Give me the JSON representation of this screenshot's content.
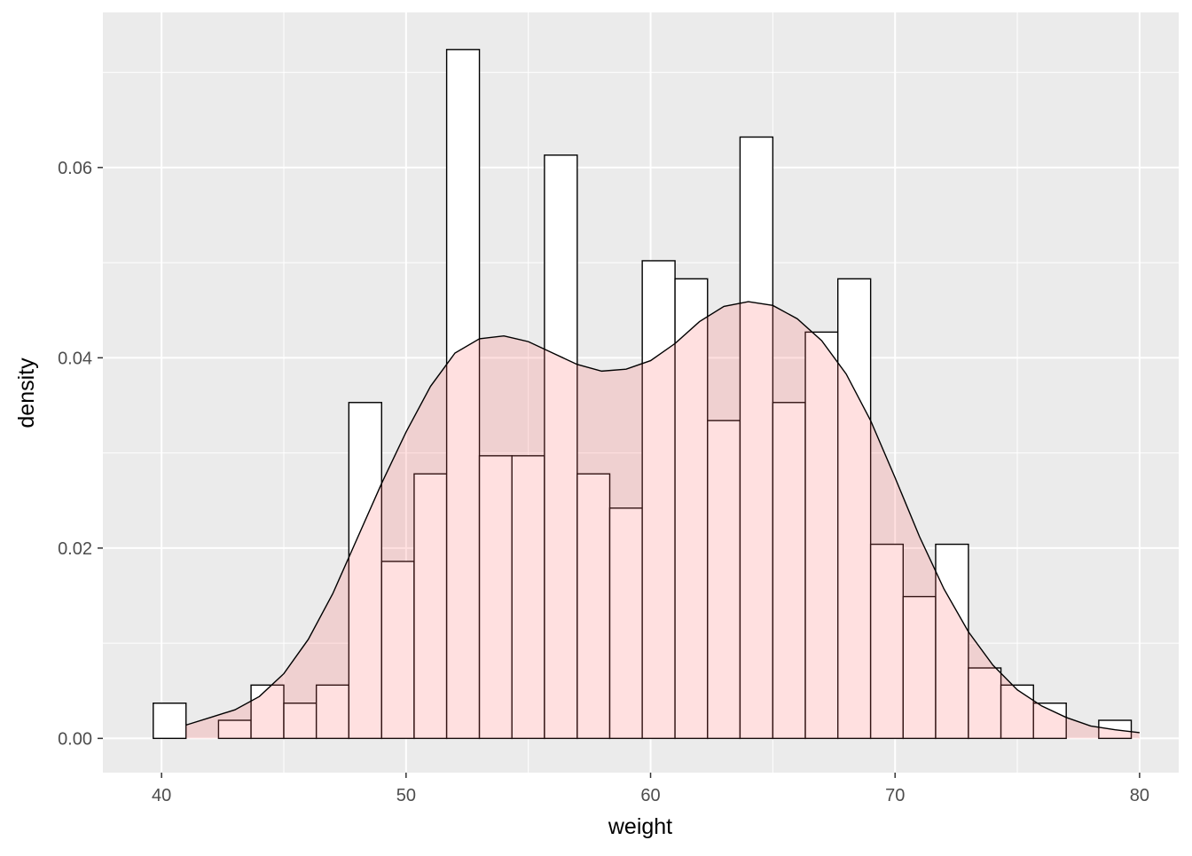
{
  "chart_data": {
    "type": "bar",
    "subtype": "histogram-with-density",
    "xlabel": "weight",
    "ylabel": "density",
    "xlim": [
      37.6,
      81.6
    ],
    "ylim": [
      -0.0036,
      0.0763
    ],
    "x_ticks": [
      40,
      50,
      60,
      70,
      80
    ],
    "y_ticks": [
      0.0,
      0.02,
      0.04,
      0.06
    ],
    "x_tick_labels": [
      "40",
      "50",
      "60",
      "70",
      "80"
    ],
    "y_tick_labels": [
      "0.00",
      "0.02",
      "0.04",
      "0.06"
    ],
    "grid": true,
    "background": "#ebebeb",
    "bins": [
      {
        "x0": 39.66,
        "x1": 41.0,
        "density": 0.0037
      },
      {
        "x0": 41.0,
        "x1": 42.33,
        "density": 0.0
      },
      {
        "x0": 42.33,
        "x1": 43.66,
        "density": 0.0019
      },
      {
        "x0": 43.66,
        "x1": 45.0,
        "density": 0.0056
      },
      {
        "x0": 45.0,
        "x1": 46.33,
        "density": 0.0037
      },
      {
        "x0": 46.33,
        "x1": 47.66,
        "density": 0.0056
      },
      {
        "x0": 47.66,
        "x1": 49.0,
        "density": 0.0353
      },
      {
        "x0": 49.0,
        "x1": 50.33,
        "density": 0.0186
      },
      {
        "x0": 50.33,
        "x1": 51.66,
        "density": 0.0278
      },
      {
        "x0": 51.66,
        "x1": 53.0,
        "density": 0.0724
      },
      {
        "x0": 53.0,
        "x1": 54.33,
        "density": 0.0297
      },
      {
        "x0": 54.33,
        "x1": 55.66,
        "density": 0.0297
      },
      {
        "x0": 55.66,
        "x1": 57.0,
        "density": 0.0613
      },
      {
        "x0": 57.0,
        "x1": 58.33,
        "density": 0.0278
      },
      {
        "x0": 58.33,
        "x1": 59.66,
        "density": 0.0242
      },
      {
        "x0": 59.66,
        "x1": 61.0,
        "density": 0.0502
      },
      {
        "x0": 61.0,
        "x1": 62.33,
        "density": 0.0483
      },
      {
        "x0": 62.33,
        "x1": 63.66,
        "density": 0.0334
      },
      {
        "x0": 63.66,
        "x1": 65.0,
        "density": 0.0632
      },
      {
        "x0": 65.0,
        "x1": 66.33,
        "density": 0.0353
      },
      {
        "x0": 66.33,
        "x1": 67.66,
        "density": 0.0427
      },
      {
        "x0": 67.66,
        "x1": 69.0,
        "density": 0.0483
      },
      {
        "x0": 69.0,
        "x1": 70.33,
        "density": 0.0204
      },
      {
        "x0": 70.33,
        "x1": 71.66,
        "density": 0.0149
      },
      {
        "x0": 71.66,
        "x1": 73.0,
        "density": 0.0204
      },
      {
        "x0": 73.0,
        "x1": 74.33,
        "density": 0.0074
      },
      {
        "x0": 74.33,
        "x1": 75.66,
        "density": 0.0056
      },
      {
        "x0": 75.66,
        "x1": 77.0,
        "density": 0.0037
      },
      {
        "x0": 77.0,
        "x1": 78.33,
        "density": 0.0
      },
      {
        "x0": 78.33,
        "x1": 79.66,
        "density": 0.0019
      }
    ],
    "density_curve": {
      "fill": "#ff6666",
      "fill_opacity": 0.2,
      "points": [
        [
          41.0,
          0.0014
        ],
        [
          42.0,
          0.0022
        ],
        [
          43.0,
          0.003
        ],
        [
          44.0,
          0.0044
        ],
        [
          45.0,
          0.0068
        ],
        [
          46.0,
          0.0104
        ],
        [
          47.0,
          0.0152
        ],
        [
          48.0,
          0.021
        ],
        [
          49.0,
          0.0268
        ],
        [
          50.0,
          0.0322
        ],
        [
          51.0,
          0.037
        ],
        [
          52.0,
          0.0405
        ],
        [
          53.0,
          0.042
        ],
        [
          54.0,
          0.0423
        ],
        [
          55.0,
          0.0417
        ],
        [
          56.0,
          0.0405
        ],
        [
          57.0,
          0.0393
        ],
        [
          58.0,
          0.0386
        ],
        [
          59.0,
          0.0388
        ],
        [
          60.0,
          0.0397
        ],
        [
          61.0,
          0.0415
        ],
        [
          62.0,
          0.0438
        ],
        [
          63.0,
          0.0454
        ],
        [
          64.0,
          0.0459
        ],
        [
          65.0,
          0.0455
        ],
        [
          66.0,
          0.0441
        ],
        [
          67.0,
          0.0418
        ],
        [
          68.0,
          0.0383
        ],
        [
          69.0,
          0.0334
        ],
        [
          70.0,
          0.0274
        ],
        [
          71.0,
          0.0212
        ],
        [
          72.0,
          0.0157
        ],
        [
          73.0,
          0.0112
        ],
        [
          74.0,
          0.0077
        ],
        [
          75.0,
          0.0051
        ],
        [
          76.0,
          0.0034
        ],
        [
          77.0,
          0.0022
        ],
        [
          78.0,
          0.0013
        ],
        [
          79.0,
          0.0009
        ],
        [
          80.0,
          0.0006
        ]
      ]
    }
  }
}
